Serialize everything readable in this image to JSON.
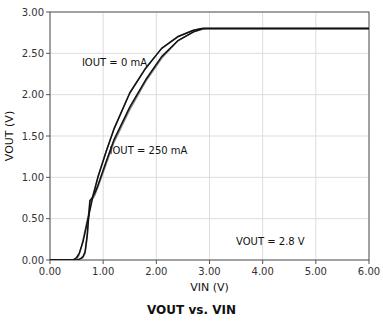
{
  "chart_data": {
    "type": "line",
    "title": "VOUT vs. VIN",
    "x_label": "VIN (V)",
    "y_label": "VOUT (V)",
    "xlim": [
      0.0,
      6.0
    ],
    "ylim": [
      0.0,
      3.0
    ],
    "xticks": [
      {
        "value": 0.0,
        "label": "0.00"
      },
      {
        "value": 1.0,
        "label": "1.00"
      },
      {
        "value": 2.0,
        "label": "2.00"
      },
      {
        "value": 3.0,
        "label": "3.00"
      },
      {
        "value": 4.0,
        "label": "4.00"
      },
      {
        "value": 5.0,
        "label": "5.00"
      },
      {
        "value": 6.0,
        "label": "6.00"
      }
    ],
    "yticks": [
      {
        "value": 0.0,
        "label": "0.00"
      },
      {
        "value": 0.5,
        "label": "0.50"
      },
      {
        "value": 1.0,
        "label": "1.00"
      },
      {
        "value": 1.5,
        "label": "1.50"
      },
      {
        "value": 2.0,
        "label": "2.00"
      },
      {
        "value": 2.5,
        "label": "2.50"
      },
      {
        "value": 3.0,
        "label": "3.00"
      }
    ],
    "grid": true,
    "series": [
      {
        "color": "#888888",
        "x": [
          0.0,
          0.46,
          0.5,
          0.54,
          0.6,
          0.68,
          0.78,
          0.9,
          1.05,
          1.2,
          1.5,
          1.8,
          2.1,
          2.4,
          2.7,
          2.88,
          2.95,
          3.0,
          3.5,
          4.0,
          5.0,
          6.0
        ],
        "values": [
          0.0,
          0.0,
          0.01,
          0.05,
          0.18,
          0.42,
          0.72,
          1.0,
          1.3,
          1.58,
          2.02,
          2.32,
          2.56,
          2.7,
          2.78,
          2.8,
          2.8,
          2.8,
          2.8,
          2.8,
          2.8,
          2.8
        ]
      },
      {
        "color": "#888888",
        "x": [
          0.0,
          0.54,
          0.58,
          0.62,
          0.66,
          0.7,
          0.75,
          0.8,
          0.84,
          0.9,
          1.05,
          1.2,
          1.5,
          1.8,
          2.1,
          2.4,
          2.7,
          2.92,
          3.0,
          3.5,
          4.0,
          5.0,
          6.0
        ],
        "values": [
          0.0,
          0.0,
          0.01,
          0.03,
          0.08,
          0.28,
          0.7,
          0.74,
          0.78,
          0.88,
          1.15,
          1.42,
          1.82,
          2.16,
          2.44,
          2.65,
          2.76,
          2.8,
          2.8,
          2.8,
          2.8,
          2.8,
          2.8
        ]
      },
      {
        "color": "#111111",
        "x": [
          0.0,
          0.42,
          0.46,
          0.5,
          0.55,
          0.62,
          0.7,
          0.8,
          0.9,
          1.05,
          1.2,
          1.5,
          1.8,
          2.1,
          2.4,
          2.7,
          2.85,
          2.92,
          3.0,
          3.5,
          4.0,
          5.0,
          6.0
        ],
        "values": [
          0.0,
          0.0,
          0.01,
          0.03,
          0.08,
          0.22,
          0.45,
          0.75,
          1.0,
          1.3,
          1.58,
          2.02,
          2.32,
          2.56,
          2.7,
          2.78,
          2.8,
          2.8,
          2.8,
          2.8,
          2.8,
          2.8,
          2.8
        ]
      },
      {
        "color": "#111111",
        "x": [
          0.0,
          0.5,
          0.55,
          0.58,
          0.62,
          0.66,
          0.7,
          0.75,
          0.78,
          0.8,
          0.85,
          0.9,
          1.05,
          1.2,
          1.5,
          1.8,
          2.1,
          2.4,
          2.7,
          2.88,
          2.95,
          3.0,
          3.5,
          4.0,
          5.0,
          6.0
        ],
        "values": [
          0.0,
          0.0,
          0.01,
          0.02,
          0.04,
          0.1,
          0.3,
          0.72,
          0.74,
          0.76,
          0.82,
          0.9,
          1.18,
          1.45,
          1.85,
          2.18,
          2.46,
          2.65,
          2.76,
          2.8,
          2.8,
          2.8,
          2.8,
          2.8,
          2.8,
          2.8
        ]
      }
    ],
    "annotations": [
      {
        "text": "IOUT = 0 mA",
        "x": 0.6,
        "y": 2.35
      },
      {
        "text": "IOUT = 250 mA",
        "x": 1.12,
        "y": 1.28
      },
      {
        "text": "VOUT = 2.8 V",
        "x": 3.5,
        "y": 0.18
      }
    ]
  }
}
